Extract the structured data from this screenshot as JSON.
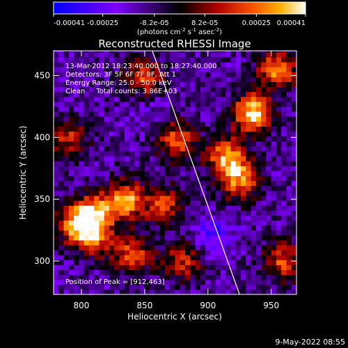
{
  "chart_data": {
    "type": "heatmap",
    "title": "Reconstructed RHESSI Image",
    "xlabel": "Heliocentric X (arcsec)",
    "ylabel": "Heliocentric Y (arcsec)",
    "xlim": [
      778,
      970
    ],
    "ylim": [
      273,
      470
    ],
    "x_ticks": [
      800,
      850,
      900,
      950
    ],
    "y_ticks": [
      300,
      350,
      400,
      450
    ],
    "colorbar": {
      "ticks": [
        "-0.00041",
        "-0.00025",
        "-8.2e-05",
        "8.2e-05",
        "0.00025",
        "0.00041"
      ],
      "tick_values": [
        -0.00041,
        -0.00025,
        -8.2e-05,
        8.2e-05,
        0.00025,
        0.00041
      ],
      "unit_base": "(photons cm",
      "unit_exp1": "-2",
      "unit_mid": " s",
      "unit_exp2": "-1",
      "unit_tail": " asec",
      "unit_exp3": "-2",
      "unit_close": ")"
    },
    "info_lines": [
      "13-Mar-2012 18:23:40.000 to 18:27:40.000",
      "Detectors: 3F 5F 6F 7F 8F, Att 1",
      "Energy Range: 25.0 - 50.0 keV",
      "Clean     Total counts: 3.86E+03"
    ],
    "peak_label": "Position of Peak = [912,463]",
    "peak": [
      912,
      463
    ],
    "limb_line": [
      [
        856,
        470
      ],
      [
        925,
        273
      ]
    ],
    "bright_regions": [
      {
        "x": 935,
        "y": 420,
        "value": 0.00038
      },
      {
        "x": 915,
        "y": 385,
        "value": 0.0003
      },
      {
        "x": 925,
        "y": 365,
        "value": 0.00026
      },
      {
        "x": 955,
        "y": 455,
        "value": 0.00028
      },
      {
        "x": 835,
        "y": 350,
        "value": 0.0003
      },
      {
        "x": 810,
        "y": 340,
        "value": 0.00026
      },
      {
        "x": 810,
        "y": 320,
        "value": 0.00024
      },
      {
        "x": 795,
        "y": 330,
        "value": 0.00022
      },
      {
        "x": 865,
        "y": 345,
        "value": 0.00018
      },
      {
        "x": 875,
        "y": 398,
        "value": 0.00022
      },
      {
        "x": 850,
        "y": 448,
        "value": 0.00018
      },
      {
        "x": 880,
        "y": 300,
        "value": 0.00016
      },
      {
        "x": 960,
        "y": 300,
        "value": 0.0002
      },
      {
        "x": 840,
        "y": 305,
        "value": 0.0002
      },
      {
        "x": 790,
        "y": 400,
        "value": 0.00014
      }
    ],
    "dark_regions": [
      {
        "x": 905,
        "y": 320,
        "value": -0.0003
      },
      {
        "x": 855,
        "y": 420,
        "value": -0.0002
      },
      {
        "x": 800,
        "y": 430,
        "value": -0.00015
      },
      {
        "x": 790,
        "y": 290,
        "value": -0.00012
      }
    ]
  },
  "footer": {
    "date": "9-May-2022 08:55"
  }
}
